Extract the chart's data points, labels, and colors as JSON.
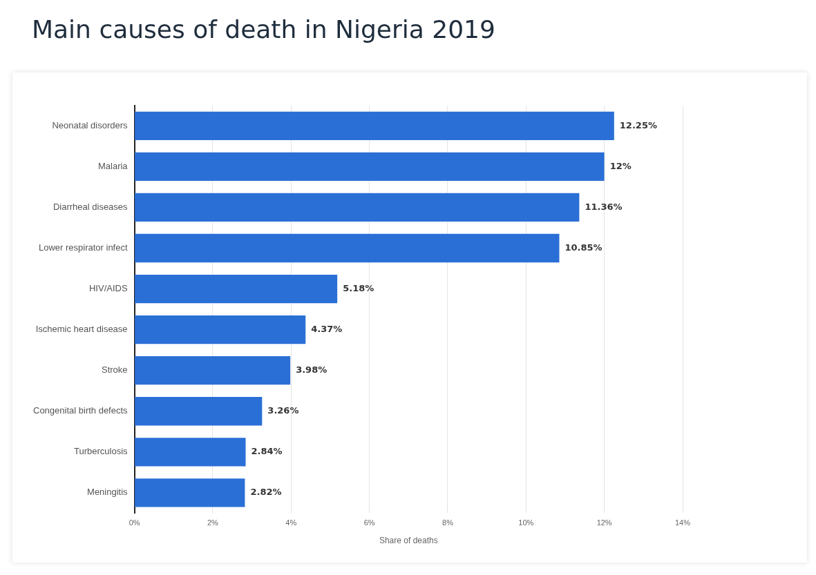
{
  "chart_data": {
    "type": "bar",
    "orientation": "horizontal",
    "title": "Main causes of death in Nigeria 2019",
    "xlabel": "Share of deaths",
    "categories": [
      "Neonatal disorders",
      "Malaria",
      "Diarrheal diseases",
      "Lower respirator infect",
      "HIV/AIDS",
      "Ischemic heart disease",
      "Stroke",
      "Congenital birth defects",
      "Turberculosis",
      "Meningitis"
    ],
    "values": [
      12.25,
      12,
      11.36,
      10.85,
      5.18,
      4.37,
      3.98,
      3.26,
      2.84,
      2.82
    ],
    "value_labels": [
      "12.25%",
      "12%",
      "11.36%",
      "10.85%",
      "5.18%",
      "4.37%",
      "3.98%",
      "3.26%",
      "2.84%",
      "2.82%"
    ],
    "color": "#2a6fd6",
    "xlim": [
      0,
      14
    ],
    "xticks": [
      {
        "value": 0,
        "label": "0%"
      },
      {
        "value": 2,
        "label": "2%"
      },
      {
        "value": 4,
        "label": "4%"
      },
      {
        "value": 6,
        "label": "6%"
      },
      {
        "value": 8,
        "label": "8%"
      },
      {
        "value": 10,
        "label": "10%"
      },
      {
        "value": 12,
        "label": "12%"
      },
      {
        "value": 14,
        "label": "14%"
      }
    ],
    "grid": "x",
    "legend": false
  }
}
